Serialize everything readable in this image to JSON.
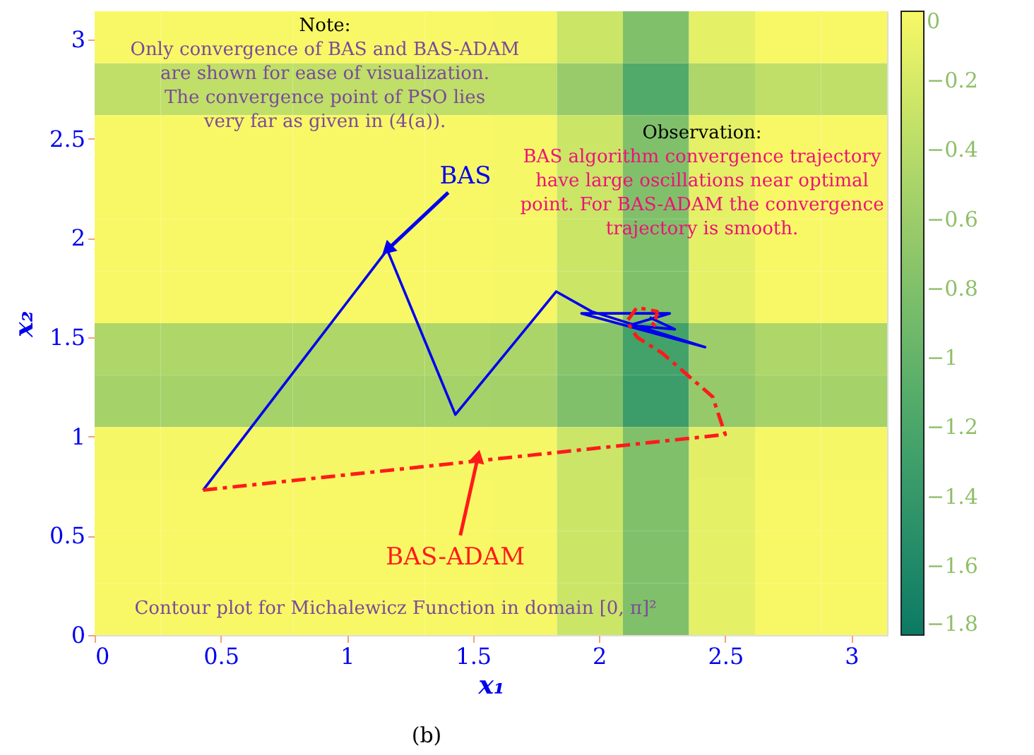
{
  "chart_data": {
    "type": "heatmap",
    "xlabel": "x₁",
    "ylabel": "x₂",
    "xlim": [
      0,
      3.1416
    ],
    "ylim": [
      0,
      3.1416
    ],
    "xticks": [
      0,
      0.5,
      1,
      1.5,
      2,
      2.5,
      3
    ],
    "yticks": [
      0,
      0.5,
      1,
      1.5,
      2,
      2.5,
      3
    ],
    "grid": false,
    "clim": [
      -1.8,
      0
    ],
    "cticks": [
      0,
      -0.2,
      -0.4,
      -0.6,
      -0.8,
      -1,
      -1.2,
      -1.4,
      -1.6,
      -1.8
    ],
    "cells": [
      [
        0,
        0,
        0,
        0,
        0,
        0,
        -0.01,
        -0.27,
        -0.79,
        -0.12,
        0,
        0
      ],
      [
        -0.35,
        -0.35,
        -0.35,
        -0.35,
        -0.35,
        -0.35,
        -0.36,
        -0.62,
        -1.14,
        -0.47,
        -0.35,
        -0.35
      ],
      [
        0,
        0,
        0,
        0,
        0,
        0,
        -0.01,
        -0.27,
        -0.79,
        -0.12,
        0,
        0
      ],
      [
        0,
        0,
        0,
        0,
        0,
        0,
        -0.01,
        -0.27,
        -0.79,
        -0.12,
        0,
        0
      ],
      [
        0,
        0,
        0,
        0,
        0,
        0,
        -0.01,
        -0.27,
        -0.79,
        -0.12,
        0,
        0
      ],
      [
        0,
        0,
        0,
        0,
        0,
        0,
        -0.01,
        -0.27,
        -0.79,
        -0.12,
        0,
        0
      ],
      [
        -0.47,
        -0.47,
        -0.47,
        -0.47,
        -0.47,
        -0.47,
        -0.48,
        -0.74,
        -1.26,
        -0.59,
        -0.47,
        -0.47
      ],
      [
        -0.53,
        -0.53,
        -0.53,
        -0.53,
        -0.53,
        -0.53,
        -0.54,
        -0.8,
        -1.32,
        -0.65,
        -0.53,
        -0.53
      ],
      [
        -0.01,
        -0.01,
        -0.01,
        -0.01,
        -0.01,
        -0.01,
        -0.02,
        -0.28,
        -0.8,
        -0.13,
        -0.01,
        -0.01
      ],
      [
        0,
        0,
        0,
        0,
        0,
        0,
        -0.01,
        -0.27,
        -0.79,
        -0.12,
        0,
        0
      ],
      [
        0,
        0,
        0,
        0,
        0,
        0,
        -0.01,
        -0.27,
        -0.79,
        -0.12,
        0,
        0
      ],
      [
        0,
        0,
        0,
        0,
        0,
        0,
        -0.01,
        -0.27,
        -0.79,
        -0.12,
        0,
        0
      ]
    ],
    "series": [
      {
        "type": "line",
        "color": "#0000ee",
        "line_style": "solid",
        "x": [
          0.43,
          1.16,
          1.43,
          1.83,
          1.97,
          2.42,
          1.93,
          2.28,
          2.12,
          2.3,
          2.2
        ],
        "values": [
          0.73,
          1.94,
          1.11,
          1.73,
          1.63,
          1.45,
          1.62,
          1.62,
          1.56,
          1.54,
          1.6
        ]
      },
      {
        "type": "line",
        "color": "#ff1a1a",
        "line_style": "dashed",
        "x": [
          0.43,
          2.5,
          2.45,
          2.25,
          2.15,
          2.11,
          2.15,
          2.23,
          2.22,
          2.2
        ],
        "values": [
          0.73,
          1.01,
          1.2,
          1.42,
          1.5,
          1.58,
          1.65,
          1.63,
          1.56,
          1.58
        ]
      }
    ],
    "annotations": [
      "Note:",
      "Only convergence of BAS and BAS-ADAM\nare shown for ease of visualization.\nThe convergence point of PSO lies\nvery far as given in (4(a)).",
      "Observation:",
      "BAS algorithm convergence trajectory\nhave large oscillations near optimal\npoint. For BAS-ADAM the convergence\ntrajectory is smooth.",
      {
        "text": "BAS",
        "x": 1.16,
        "y": 1.94
      },
      {
        "text": "BAS-ADAM",
        "x": 1.52,
        "y": 0.9
      },
      "Contour plot for Michalewicz Function in domain [0, π]²",
      "(b)"
    ]
  }
}
